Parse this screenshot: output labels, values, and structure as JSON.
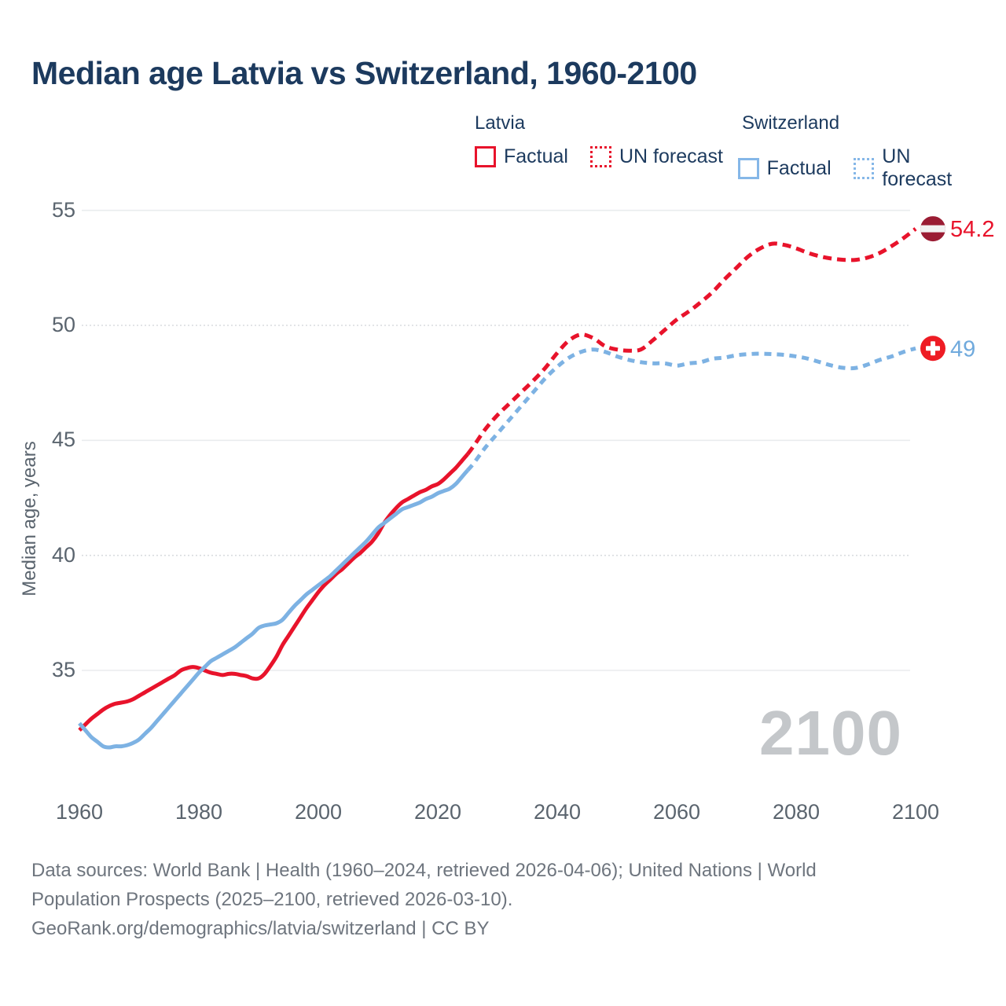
{
  "header": {
    "title": "Median age Latvia vs Switzerland, 1960-2100"
  },
  "legend": {
    "groups": [
      {
        "label": "Latvia",
        "items": [
          {
            "label": "Factual",
            "style": "solid"
          },
          {
            "label": "UN forecast",
            "style": "dotted"
          }
        ],
        "color": "#e8132b"
      },
      {
        "label": "Switzerland",
        "items": [
          {
            "label": "Factual",
            "style": "solid"
          },
          {
            "label": "UN forecast",
            "style": "dotted"
          }
        ],
        "color": "#85b7e8"
      }
    ]
  },
  "chart_data": {
    "type": "line",
    "title": "Median age Latvia vs Switzerland, 1960-2100",
    "xlabel": "",
    "ylabel": "Median age, years",
    "xlim": [
      1960,
      2100
    ],
    "ylim": [
      31,
      56
    ],
    "legend_position": "top-right",
    "grid": "horizontal",
    "xticks": [
      1960,
      1980,
      2000,
      2020,
      2040,
      2060,
      2080,
      2100
    ],
    "yticks": [
      {
        "value": 35,
        "grid": "solid"
      },
      {
        "value": 40,
        "grid": "dotted"
      },
      {
        "value": 45,
        "grid": "solid"
      },
      {
        "value": 50,
        "grid": "dotted"
      },
      {
        "value": 55,
        "grid": "solid"
      }
    ],
    "series": [
      {
        "name": "Latvia Factual",
        "country": "Latvia",
        "kind": "factual",
        "color": "#e8132b",
        "dash": "none",
        "width": 5,
        "points": [
          [
            1960,
            32.4
          ],
          [
            1961,
            32.65
          ],
          [
            1962,
            32.9
          ],
          [
            1963,
            33.1
          ],
          [
            1964,
            33.3
          ],
          [
            1965,
            33.45
          ],
          [
            1966,
            33.55
          ],
          [
            1967,
            33.6
          ],
          [
            1968,
            33.65
          ],
          [
            1969,
            33.75
          ],
          [
            1970,
            33.9
          ],
          [
            1971,
            34.05
          ],
          [
            1972,
            34.2
          ],
          [
            1973,
            34.35
          ],
          [
            1974,
            34.5
          ],
          [
            1975,
            34.65
          ],
          [
            1976,
            34.8
          ],
          [
            1977,
            35.0
          ],
          [
            1978,
            35.1
          ],
          [
            1979,
            35.15
          ],
          [
            1980,
            35.1
          ],
          [
            1981,
            35.0
          ],
          [
            1982,
            34.9
          ],
          [
            1983,
            34.85
          ],
          [
            1984,
            34.8
          ],
          [
            1985,
            34.85
          ],
          [
            1986,
            34.85
          ],
          [
            1987,
            34.8
          ],
          [
            1988,
            34.75
          ],
          [
            1989,
            34.65
          ],
          [
            1990,
            34.65
          ],
          [
            1991,
            34.85
          ],
          [
            1992,
            35.2
          ],
          [
            1993,
            35.6
          ],
          [
            1994,
            36.1
          ],
          [
            1995,
            36.5
          ],
          [
            1996,
            36.9
          ],
          [
            1997,
            37.3
          ],
          [
            1998,
            37.7
          ],
          [
            1999,
            38.05
          ],
          [
            2000,
            38.4
          ],
          [
            2001,
            38.7
          ],
          [
            2002,
            38.95
          ],
          [
            2003,
            39.2
          ],
          [
            2004,
            39.4
          ],
          [
            2005,
            39.65
          ],
          [
            2006,
            39.9
          ],
          [
            2007,
            40.1
          ],
          [
            2008,
            40.35
          ],
          [
            2009,
            40.6
          ],
          [
            2010,
            40.95
          ],
          [
            2011,
            41.4
          ],
          [
            2012,
            41.75
          ],
          [
            2013,
            42.05
          ],
          [
            2014,
            42.3
          ],
          [
            2015,
            42.45
          ],
          [
            2016,
            42.6
          ],
          [
            2017,
            42.75
          ],
          [
            2018,
            42.85
          ],
          [
            2019,
            43.0
          ],
          [
            2020,
            43.1
          ],
          [
            2021,
            43.3
          ],
          [
            2022,
            43.55
          ],
          [
            2023,
            43.8
          ],
          [
            2024,
            44.1
          ],
          [
            2025,
            44.4
          ]
        ]
      },
      {
        "name": "Latvia UN forecast",
        "country": "Latvia",
        "kind": "forecast",
        "color": "#e8132b",
        "dash": "11 7",
        "width": 5,
        "points": [
          [
            2025,
            44.4
          ],
          [
            2026,
            44.75
          ],
          [
            2028,
            45.5
          ],
          [
            2030,
            46.1
          ],
          [
            2032,
            46.6
          ],
          [
            2034,
            47.1
          ],
          [
            2036,
            47.6
          ],
          [
            2038,
            48.15
          ],
          [
            2040,
            48.8
          ],
          [
            2042,
            49.35
          ],
          [
            2044,
            49.6
          ],
          [
            2046,
            49.45
          ],
          [
            2048,
            49.1
          ],
          [
            2050,
            48.95
          ],
          [
            2052,
            48.9
          ],
          [
            2054,
            48.95
          ],
          [
            2056,
            49.35
          ],
          [
            2058,
            49.8
          ],
          [
            2060,
            50.25
          ],
          [
            2062,
            50.6
          ],
          [
            2064,
            51.0
          ],
          [
            2066,
            51.45
          ],
          [
            2068,
            52.0
          ],
          [
            2070,
            52.5
          ],
          [
            2072,
            53.0
          ],
          [
            2074,
            53.35
          ],
          [
            2076,
            53.55
          ],
          [
            2078,
            53.5
          ],
          [
            2080,
            53.35
          ],
          [
            2082,
            53.15
          ],
          [
            2084,
            53.0
          ],
          [
            2086,
            52.9
          ],
          [
            2088,
            52.85
          ],
          [
            2090,
            52.85
          ],
          [
            2092,
            52.95
          ],
          [
            2094,
            53.15
          ],
          [
            2096,
            53.45
          ],
          [
            2098,
            53.8
          ],
          [
            2100,
            54.2
          ]
        ]
      },
      {
        "name": "Switzerland Factual",
        "country": "Switzerland",
        "kind": "factual",
        "color": "#7db2e3",
        "dash": "none",
        "width": 5,
        "points": [
          [
            1960,
            32.7
          ],
          [
            1961,
            32.4
          ],
          [
            1962,
            32.1
          ],
          [
            1963,
            31.9
          ],
          [
            1964,
            31.7
          ],
          [
            1965,
            31.65
          ],
          [
            1966,
            31.7
          ],
          [
            1967,
            31.7
          ],
          [
            1968,
            31.75
          ],
          [
            1969,
            31.85
          ],
          [
            1970,
            32.0
          ],
          [
            1971,
            32.25
          ],
          [
            1972,
            32.5
          ],
          [
            1973,
            32.8
          ],
          [
            1974,
            33.1
          ],
          [
            1975,
            33.4
          ],
          [
            1976,
            33.7
          ],
          [
            1977,
            34.0
          ],
          [
            1978,
            34.3
          ],
          [
            1979,
            34.6
          ],
          [
            1980,
            34.9
          ],
          [
            1981,
            35.15
          ],
          [
            1982,
            35.4
          ],
          [
            1983,
            35.55
          ],
          [
            1984,
            35.7
          ],
          [
            1985,
            35.85
          ],
          [
            1986,
            36.0
          ],
          [
            1987,
            36.2
          ],
          [
            1988,
            36.4
          ],
          [
            1989,
            36.6
          ],
          [
            1990,
            36.85
          ],
          [
            1991,
            36.95
          ],
          [
            1992,
            37.0
          ],
          [
            1993,
            37.05
          ],
          [
            1994,
            37.2
          ],
          [
            1995,
            37.5
          ],
          [
            1996,
            37.8
          ],
          [
            1997,
            38.05
          ],
          [
            1998,
            38.3
          ],
          [
            1999,
            38.5
          ],
          [
            2000,
            38.7
          ],
          [
            2001,
            38.9
          ],
          [
            2002,
            39.1
          ],
          [
            2003,
            39.35
          ],
          [
            2004,
            39.6
          ],
          [
            2005,
            39.85
          ],
          [
            2006,
            40.1
          ],
          [
            2007,
            40.35
          ],
          [
            2008,
            40.6
          ],
          [
            2009,
            40.9
          ],
          [
            2010,
            41.2
          ],
          [
            2011,
            41.4
          ],
          [
            2012,
            41.6
          ],
          [
            2013,
            41.8
          ],
          [
            2014,
            42.0
          ],
          [
            2015,
            42.1
          ],
          [
            2016,
            42.2
          ],
          [
            2017,
            42.3
          ],
          [
            2018,
            42.45
          ],
          [
            2019,
            42.55
          ],
          [
            2020,
            42.7
          ],
          [
            2021,
            42.8
          ],
          [
            2022,
            42.9
          ],
          [
            2023,
            43.1
          ],
          [
            2024,
            43.4
          ],
          [
            2025,
            43.7
          ]
        ]
      },
      {
        "name": "Switzerland UN forecast",
        "country": "Switzerland",
        "kind": "forecast",
        "color": "#7db2e3",
        "dash": "9 7",
        "width": 5,
        "points": [
          [
            2025,
            43.7
          ],
          [
            2026,
            44.0
          ],
          [
            2028,
            44.7
          ],
          [
            2030,
            45.3
          ],
          [
            2032,
            45.9
          ],
          [
            2034,
            46.5
          ],
          [
            2036,
            47.1
          ],
          [
            2038,
            47.7
          ],
          [
            2040,
            48.2
          ],
          [
            2042,
            48.6
          ],
          [
            2044,
            48.85
          ],
          [
            2046,
            48.95
          ],
          [
            2048,
            48.85
          ],
          [
            2050,
            48.65
          ],
          [
            2052,
            48.5
          ],
          [
            2054,
            48.4
          ],
          [
            2056,
            48.35
          ],
          [
            2058,
            48.35
          ],
          [
            2060,
            48.25
          ],
          [
            2062,
            48.35
          ],
          [
            2064,
            48.4
          ],
          [
            2066,
            48.55
          ],
          [
            2068,
            48.6
          ],
          [
            2070,
            48.7
          ],
          [
            2072,
            48.75
          ],
          [
            2074,
            48.77
          ],
          [
            2076,
            48.75
          ],
          [
            2078,
            48.72
          ],
          [
            2080,
            48.65
          ],
          [
            2082,
            48.55
          ],
          [
            2084,
            48.4
          ],
          [
            2086,
            48.25
          ],
          [
            2088,
            48.15
          ],
          [
            2090,
            48.15
          ],
          [
            2092,
            48.3
          ],
          [
            2094,
            48.5
          ],
          [
            2096,
            48.65
          ],
          [
            2098,
            48.85
          ],
          [
            2100,
            49.0
          ]
        ]
      }
    ],
    "endpoints": [
      {
        "series": "Latvia",
        "year": 2100,
        "value": 54.2,
        "label": "54.2",
        "label_color": "#e8132b",
        "flag": "latvia",
        "flag_colors": {
          "base": "#9a1c33",
          "stripe": "#f2f2f2"
        }
      },
      {
        "series": "Switzerland",
        "year": 2100,
        "value": 49,
        "label": "49",
        "label_color": "#70aadd",
        "flag": "switzerland",
        "flag_colors": {
          "base": "#ee1c24",
          "cross": "#ffffff"
        }
      }
    ],
    "watermark": "2100"
  },
  "footer": {
    "sources": "Data sources: World Bank | Health (1960–2024, retrieved 2026-04-06); United Nations | World Population Prospects (2025–2100, retrieved 2026-03-10).",
    "link": "GeoRank.org/demographics/latvia/switzerland | CC BY"
  }
}
